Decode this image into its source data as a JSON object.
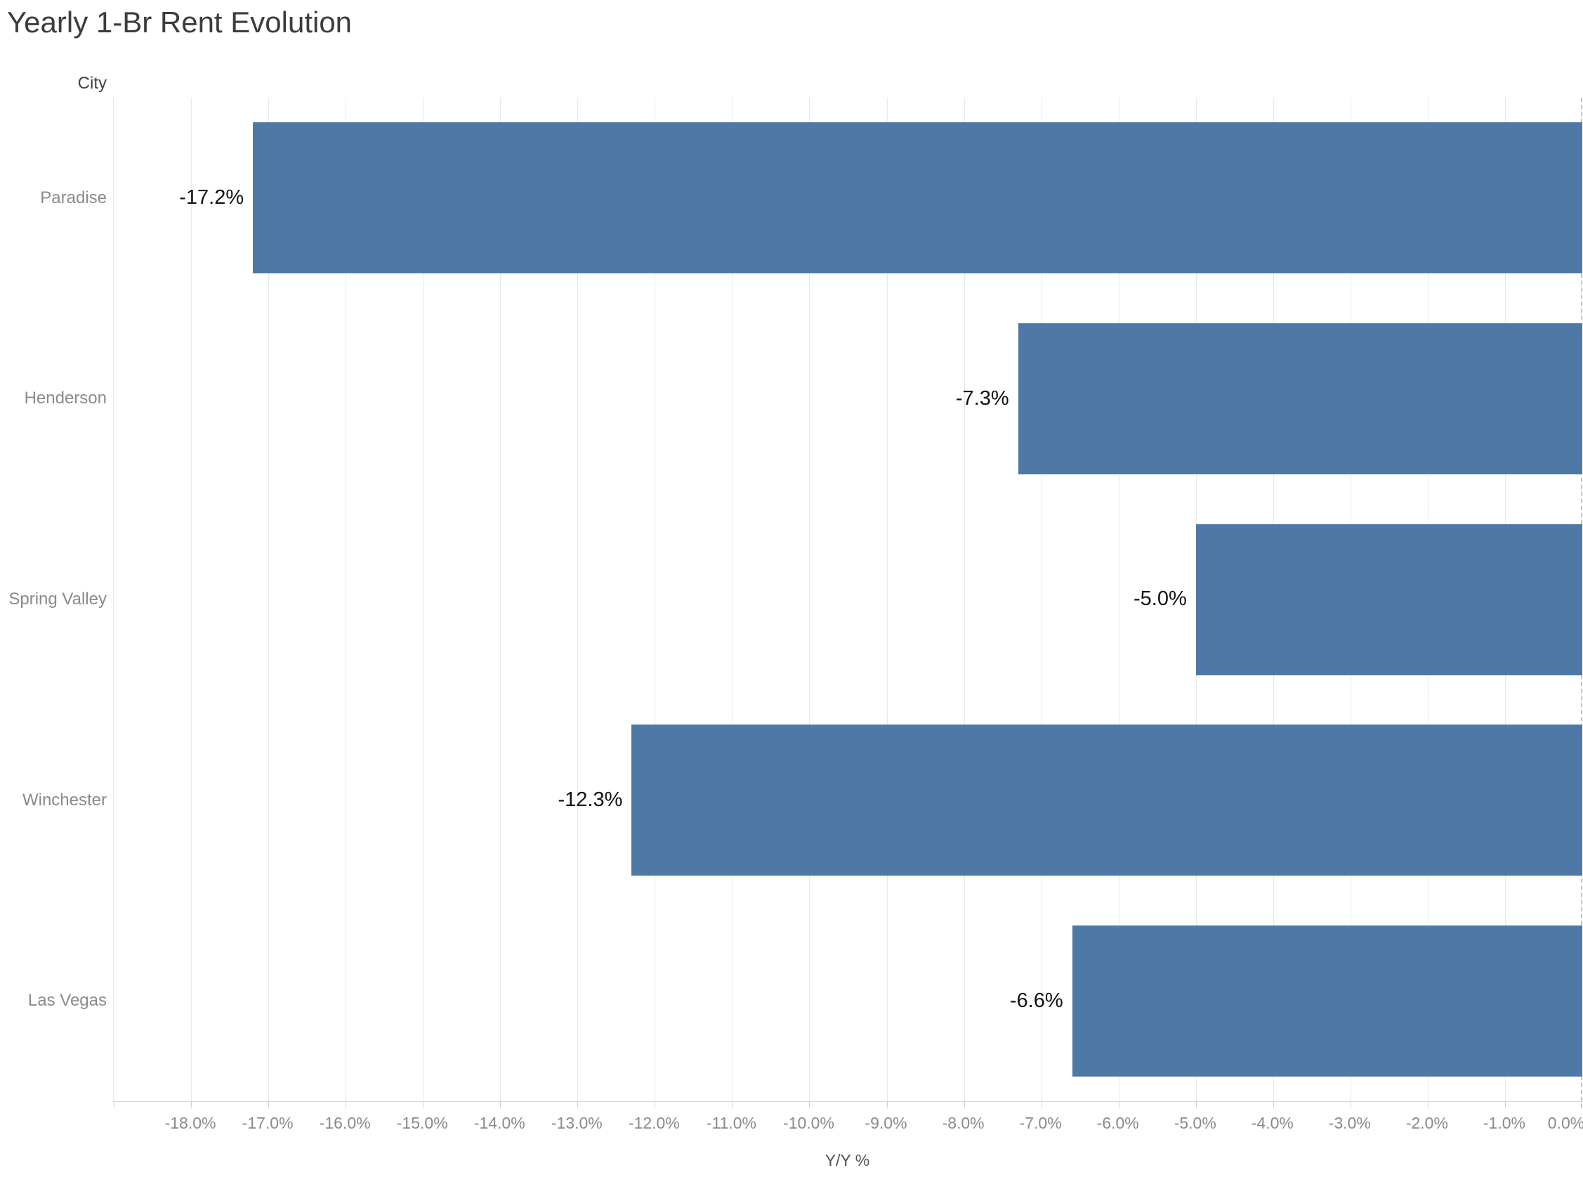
{
  "chart_data": {
    "type": "bar",
    "orientation": "horizontal",
    "title": "Yearly 1-Br Rent Evolution",
    "category_axis_title": "City",
    "xlabel": "Y/Y %",
    "categories": [
      "Paradise",
      "Henderson",
      "Spring Valley",
      "Winchester",
      "Las Vegas"
    ],
    "values": [
      -17.2,
      -7.3,
      -5.0,
      -12.3,
      -6.6
    ],
    "value_labels": [
      "-17.2%",
      "-7.3%",
      "-5.0%",
      "-12.3%",
      "-6.6%"
    ],
    "xlim": [
      -19,
      0
    ],
    "x_ticks": [
      {
        "value": -18,
        "label": "-18.0%"
      },
      {
        "value": -17,
        "label": "-17.0%"
      },
      {
        "value": -16,
        "label": "-16.0%"
      },
      {
        "value": -15,
        "label": "-15.0%"
      },
      {
        "value": -14,
        "label": "-14.0%"
      },
      {
        "value": -13,
        "label": "-13.0%"
      },
      {
        "value": -12,
        "label": "-12.0%"
      },
      {
        "value": -11,
        "label": "-11.0%"
      },
      {
        "value": -10,
        "label": "-10.0%"
      },
      {
        "value": -9,
        "label": "-9.0%"
      },
      {
        "value": -8,
        "label": "-8.0%"
      },
      {
        "value": -7,
        "label": "-7.0%"
      },
      {
        "value": -6,
        "label": "-6.0%"
      },
      {
        "value": -5,
        "label": "-5.0%"
      },
      {
        "value": -4,
        "label": "-4.0%"
      },
      {
        "value": -3,
        "label": "-3.0%"
      },
      {
        "value": -2,
        "label": "-2.0%"
      },
      {
        "value": -1,
        "label": "-1.0%"
      },
      {
        "value": 0,
        "label": "0.0%"
      }
    ],
    "grid": true,
    "zero_line_style": "dashed",
    "legend": "none",
    "bar_color": "#4e79a7"
  },
  "colors": {
    "bar": "#4e79a7",
    "title_text": "#3c3c3c",
    "axis_label_text": "#8a8a8a",
    "value_label_text": "#121212",
    "gridline": "#e8e8e8"
  }
}
